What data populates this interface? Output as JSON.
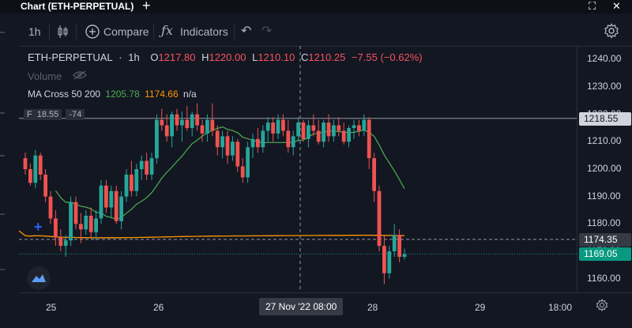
{
  "window": {
    "title": "Chart (ETH-PERPETUAL)"
  },
  "toolbar": {
    "interval": "1h",
    "compare_label": "Compare",
    "indicators_label": "Indicators"
  },
  "legend": {
    "symbol": "ETH-PERPETUAL",
    "interval": "1h",
    "open_label": "O",
    "open": "1217.80",
    "high_label": "H",
    "high": "1220.00",
    "low_label": "L",
    "low": "1210.10",
    "close_label": "C",
    "close": "1210.25",
    "change": "−7.55 (−0.62%)"
  },
  "volume_label": "Volume",
  "ma": {
    "label": "MA Cross 50 200",
    "fast": "1205.78",
    "slow": "1174.66",
    "extra": "n/a"
  },
  "position": {
    "price_partial": "18.55",
    "pnl": "-74"
  },
  "y_axis": {
    "ticks": [
      "1240.00",
      "1230.00",
      "1220.00",
      "1210.00",
      "1200.00",
      "1190.00",
      "1180.00",
      "1170.00",
      "1160.00"
    ]
  },
  "price_labels": {
    "top": "1218.55",
    "mid": "1174.35",
    "last": "1169.05"
  },
  "x_axis": {
    "ticks": [
      "25",
      "26",
      "28",
      "29",
      "18:00"
    ],
    "crosshair": "27 Nov '22   08:00"
  },
  "colors": {
    "background": "#131722",
    "up": "#26a69a",
    "down": "#ef5350",
    "ma_fast": "#4caf50",
    "ma_slow": "#ff9800",
    "last_price": "#089981",
    "title_red": "#f7525f"
  },
  "chart_data": {
    "type": "candlestick",
    "symbol": "ETH-PERPETUAL",
    "interval": "1h",
    "ylim": [
      1155,
      1245
    ],
    "x_ticks": [
      "25",
      "26",
      "27 Nov '22 08:00",
      "28",
      "29",
      "18:00"
    ],
    "candles": [
      [
        1204,
        1206,
        1198,
        1200
      ],
      [
        1200,
        1202,
        1194,
        1195
      ],
      [
        1195,
        1207,
        1193,
        1205
      ],
      [
        1205,
        1206,
        1196,
        1198
      ],
      [
        1198,
        1200,
        1188,
        1190
      ],
      [
        1190,
        1192,
        1180,
        1182
      ],
      [
        1182,
        1185,
        1172,
        1175
      ],
      [
        1175,
        1178,
        1170,
        1172
      ],
      [
        1172,
        1176,
        1168,
        1174
      ],
      [
        1174,
        1190,
        1172,
        1188
      ],
      [
        1188,
        1190,
        1178,
        1180
      ],
      [
        1180,
        1184,
        1173,
        1178
      ],
      [
        1178,
        1185,
        1176,
        1183
      ],
      [
        1183,
        1186,
        1175,
        1177
      ],
      [
        1177,
        1185,
        1174,
        1182
      ],
      [
        1182,
        1196,
        1180,
        1194
      ],
      [
        1194,
        1196,
        1184,
        1186
      ],
      [
        1186,
        1194,
        1182,
        1192
      ],
      [
        1192,
        1194,
        1180,
        1181
      ],
      [
        1181,
        1192,
        1178,
        1190
      ],
      [
        1190,
        1200,
        1188,
        1198
      ],
      [
        1198,
        1203,
        1190,
        1192
      ],
      [
        1192,
        1202,
        1190,
        1200
      ],
      [
        1200,
        1205,
        1196,
        1203
      ],
      [
        1203,
        1206,
        1196,
        1198
      ],
      [
        1198,
        1206,
        1196,
        1204
      ],
      [
        1204,
        1220,
        1202,
        1218
      ],
      [
        1218,
        1222,
        1214,
        1216
      ],
      [
        1216,
        1220,
        1210,
        1212
      ],
      [
        1212,
        1221,
        1208,
        1220
      ],
      [
        1220,
        1222,
        1214,
        1216
      ],
      [
        1216,
        1221,
        1210,
        1218
      ],
      [
        1218,
        1223,
        1214,
        1215
      ],
      [
        1215,
        1221,
        1212,
        1220
      ],
      [
        1220,
        1224,
        1214,
        1216
      ],
      [
        1216,
        1218,
        1210,
        1213
      ],
      [
        1213,
        1220,
        1210,
        1218
      ],
      [
        1218,
        1224,
        1212,
        1214
      ],
      [
        1214,
        1216,
        1205,
        1208
      ],
      [
        1208,
        1214,
        1204,
        1212
      ],
      [
        1212,
        1214,
        1202,
        1205
      ],
      [
        1205,
        1212,
        1203,
        1210
      ],
      [
        1210,
        1211,
        1199,
        1201
      ],
      [
        1201,
        1204,
        1195,
        1197
      ],
      [
        1197,
        1210,
        1195,
        1208
      ],
      [
        1208,
        1213,
        1204,
        1211
      ],
      [
        1211,
        1215,
        1206,
        1208
      ],
      [
        1208,
        1216,
        1206,
        1214
      ],
      [
        1214,
        1219,
        1210,
        1217
      ],
      [
        1217,
        1219,
        1210,
        1213
      ],
      [
        1213,
        1220,
        1211,
        1218
      ],
      [
        1218,
        1220,
        1212,
        1214
      ],
      [
        1214,
        1218,
        1206,
        1208
      ],
      [
        1208,
        1214,
        1205,
        1212
      ],
      [
        1212,
        1219,
        1210,
        1217
      ],
      [
        1217,
        1218,
        1210,
        1211
      ],
      [
        1211,
        1218,
        1208,
        1216
      ],
      [
        1216,
        1220,
        1212,
        1214
      ],
      [
        1214,
        1218,
        1209,
        1210
      ],
      [
        1210,
        1218,
        1208,
        1217
      ],
      [
        1217,
        1220,
        1210,
        1212
      ],
      [
        1212,
        1218,
        1210,
        1216
      ],
      [
        1216,
        1219,
        1212,
        1214
      ],
      [
        1214,
        1217,
        1209,
        1210
      ],
      [
        1210,
        1216,
        1208,
        1215
      ],
      [
        1215,
        1218,
        1211,
        1216
      ],
      [
        1216,
        1218,
        1212,
        1214
      ],
      [
        1214,
        1220,
        1212,
        1218
      ],
      [
        1218,
        1219,
        1200,
        1204
      ],
      [
        1204,
        1206,
        1188,
        1192
      ],
      [
        1192,
        1194,
        1170,
        1172
      ],
      [
        1172,
        1176,
        1158,
        1162
      ],
      [
        1162,
        1172,
        1160,
        1170
      ],
      [
        1170,
        1180,
        1168,
        1176
      ],
      [
        1176,
        1178,
        1166,
        1168
      ],
      [
        1168,
        1171,
        1167,
        1169
      ]
    ],
    "ma_fast_label": "MA Cross 50",
    "ma_slow_label": "MA Cross 200",
    "horizontal_lines": [
      1218.55,
      1174.35,
      1169.05
    ]
  }
}
